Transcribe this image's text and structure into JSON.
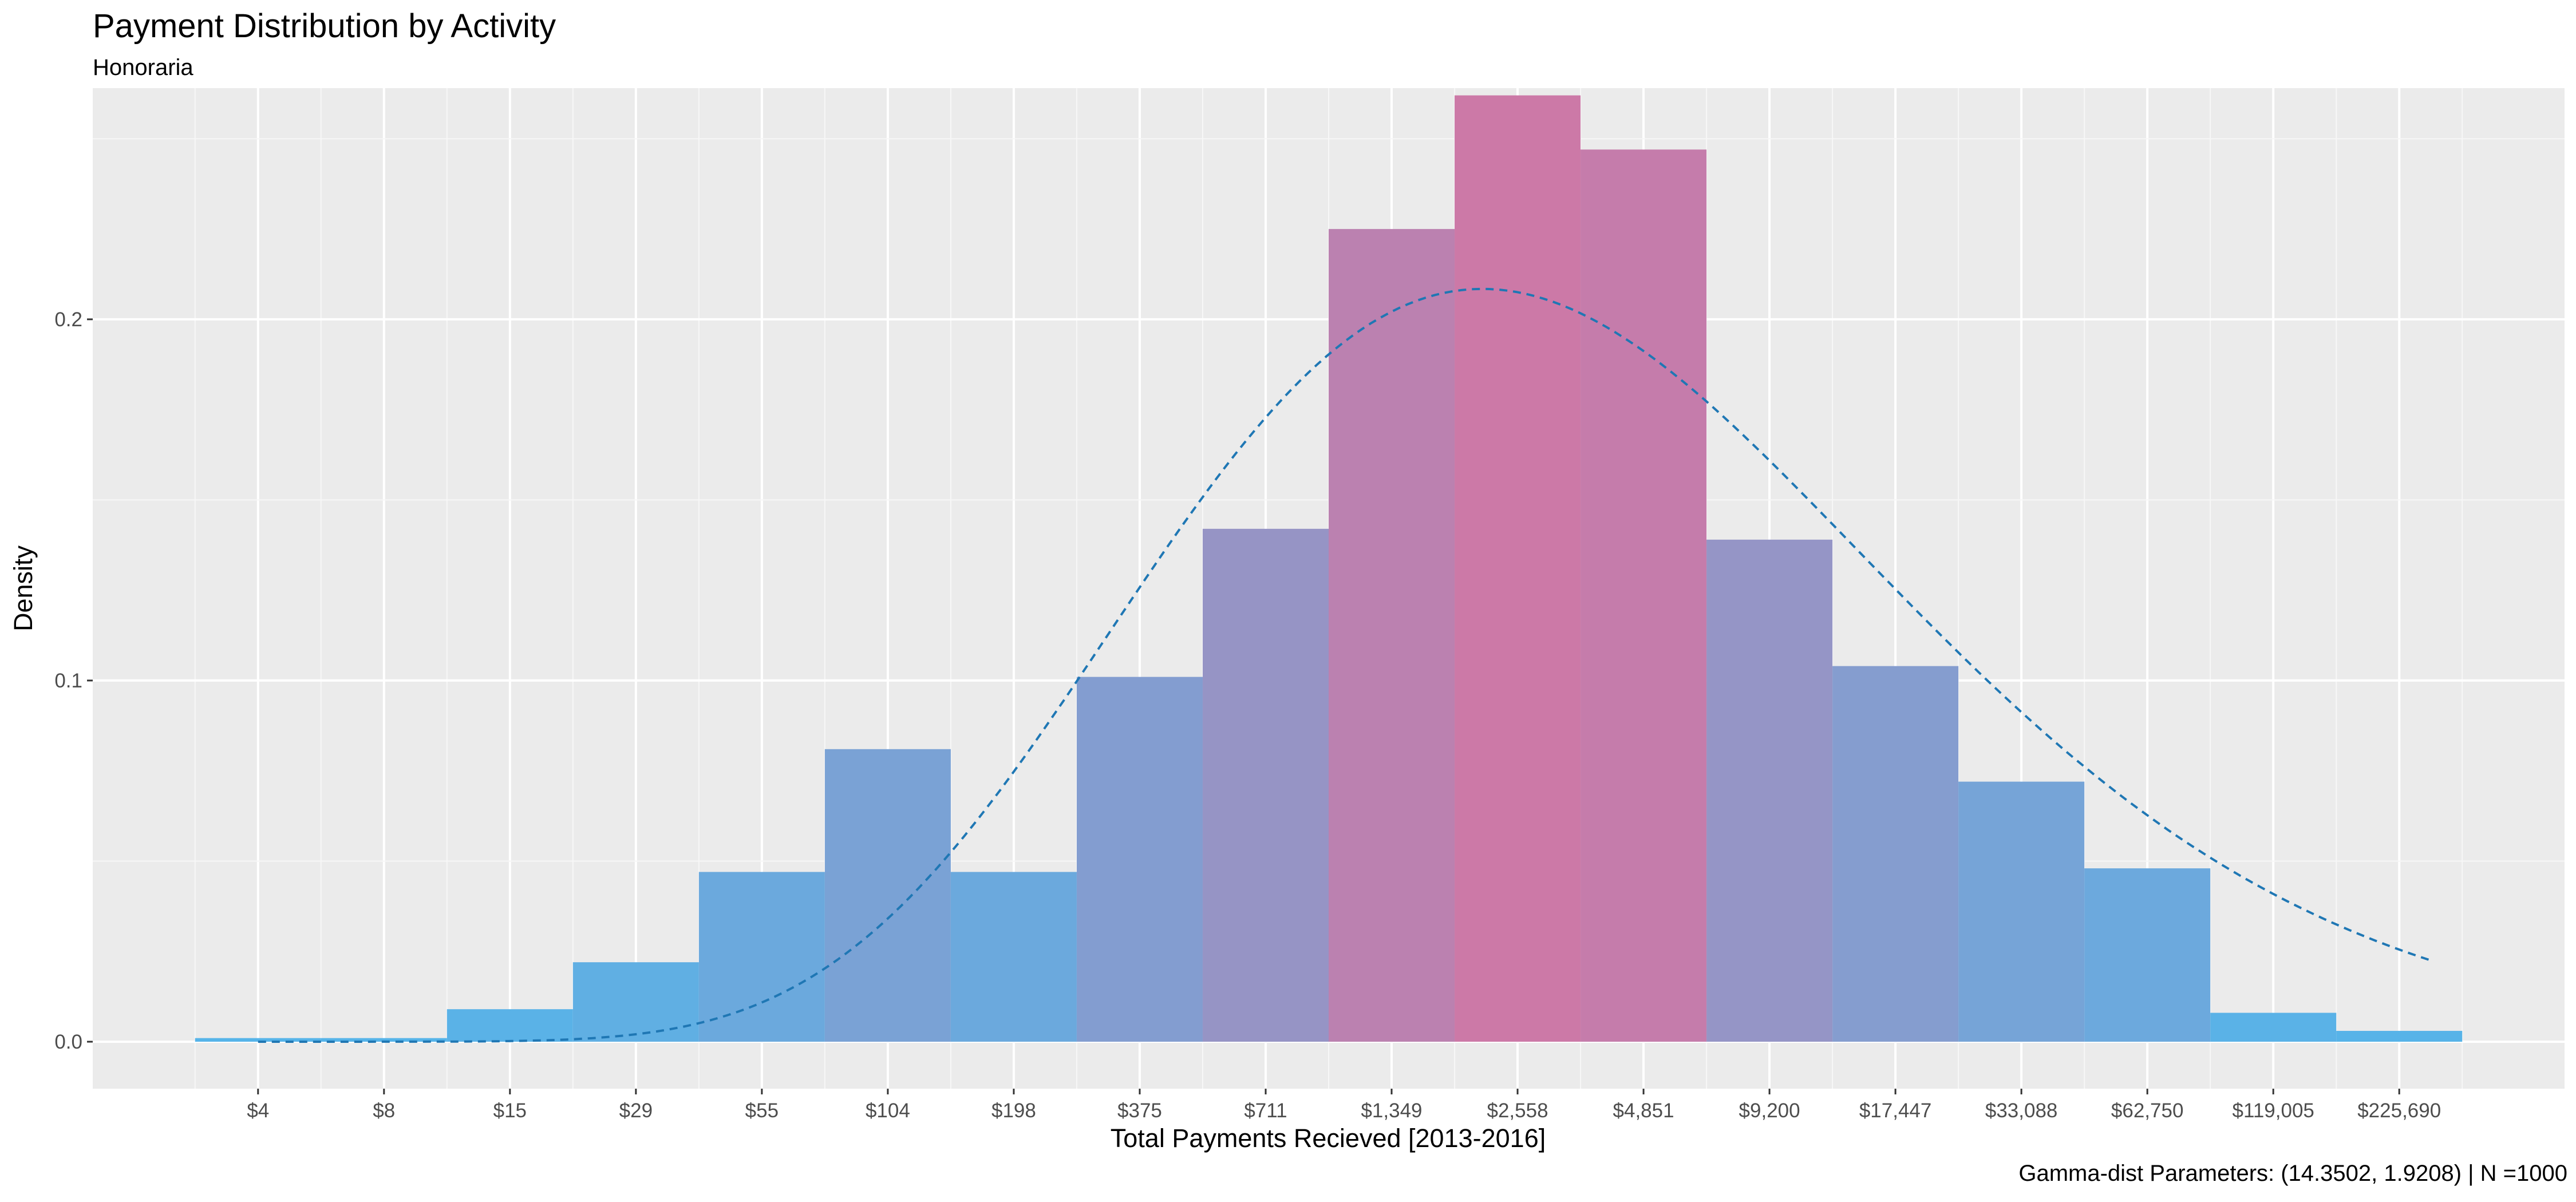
{
  "chart_data": {
    "type": "bar",
    "title": "Payment Distribution by Activity",
    "subtitle": "Honoraria",
    "caption": "Gamma-dist Parameters: (14.3502, 1.9208) | N =1000",
    "xlabel": "Total Payments Recieved [2013-2016]",
    "ylabel": "Density",
    "x_scale": "log",
    "x_tick_labels": [
      "$4",
      "$8",
      "$15",
      "$29",
      "$55",
      "$104",
      "$198",
      "$375",
      "$711",
      "$1,349",
      "$2,558",
      "$4,851",
      "$9,200",
      "$17,447",
      "$33,088",
      "$62,750",
      "$119,005",
      "$225,690"
    ],
    "y_ticks": [
      0.0,
      0.1,
      0.2
    ],
    "y_tick_labels": [
      "0.0",
      "0.1",
      "0.2"
    ],
    "ylim": [
      -0.013,
      0.264
    ],
    "bar_width_ln": 0.64,
    "bars": [
      {
        "center_ln": 0.73,
        "density": 0.001
      },
      {
        "center_ln": 1.37,
        "density": 0.001
      },
      {
        "center_ln": 2.01,
        "density": 0.009
      },
      {
        "center_ln": 2.65,
        "density": 0.022
      },
      {
        "center_ln": 3.29,
        "density": 0.047
      },
      {
        "center_ln": 3.93,
        "density": 0.081
      },
      {
        "center_ln": 4.57,
        "density": 0.047
      },
      {
        "center_ln": 5.21,
        "density": 0.101
      },
      {
        "center_ln": 5.85,
        "density": 0.142
      },
      {
        "center_ln": 6.49,
        "density": 0.225
      },
      {
        "center_ln": 7.13,
        "density": 0.262
      },
      {
        "center_ln": 7.77,
        "density": 0.247
      },
      {
        "center_ln": 8.41,
        "density": 0.139
      },
      {
        "center_ln": 9.05,
        "density": 0.104
      },
      {
        "center_ln": 9.69,
        "density": 0.072
      },
      {
        "center_ln": 10.33,
        "density": 0.048
      },
      {
        "center_ln": 10.97,
        "density": 0.008
      },
      {
        "center_ln": 11.61,
        "density": 0.003
      }
    ],
    "fill_gradient": {
      "low": "#56B4E9",
      "high": "#CC79A7"
    },
    "density_curve": {
      "distribution": "gamma",
      "shape": 14.3502,
      "rate": 1.9208,
      "style": "dashed",
      "color": "#1F77B4"
    },
    "panel_background": "#EBEBEB",
    "grid": true,
    "legend": "none"
  }
}
